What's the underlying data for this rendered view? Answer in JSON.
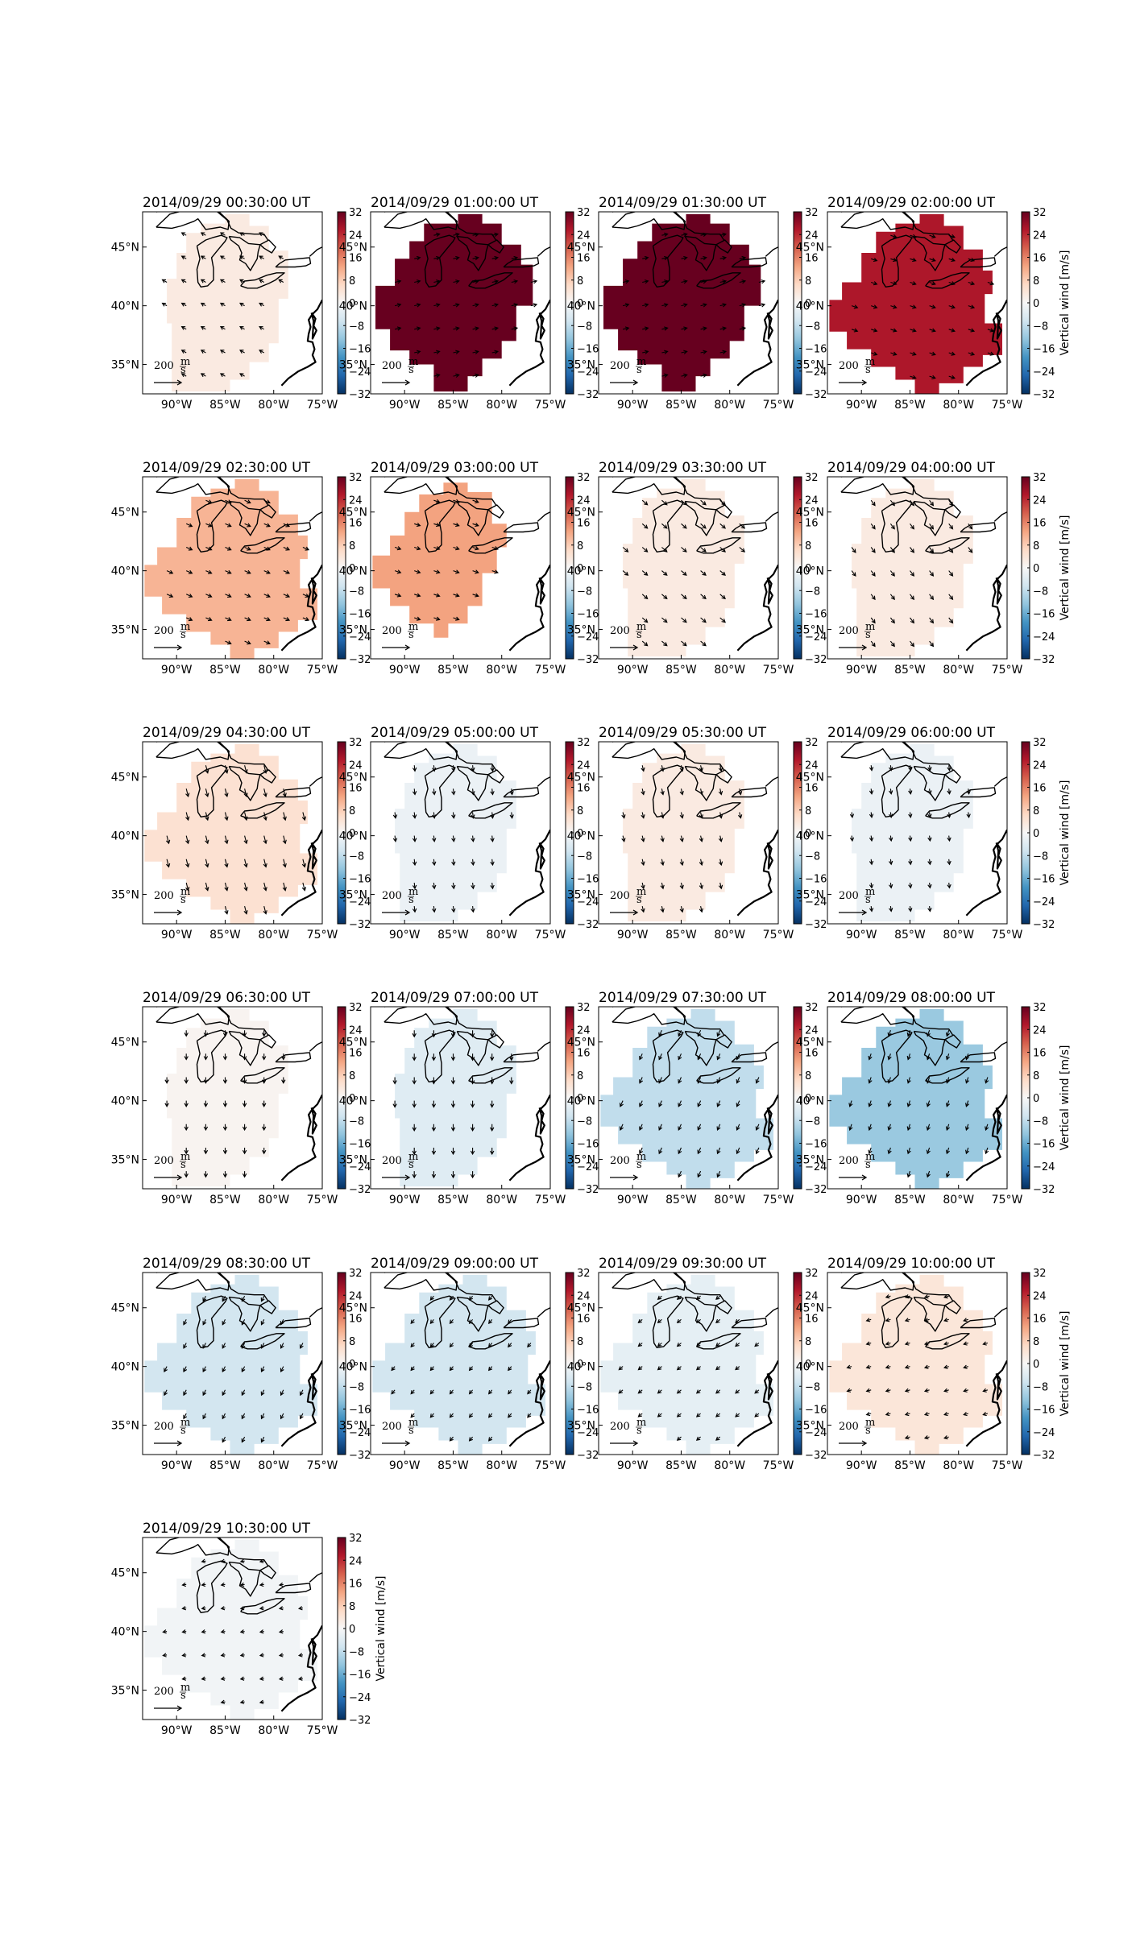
{
  "chart_data": {
    "type": "heatmap",
    "description_free": true,
    "colorbar_label": "Vertical wind [m/s]",
    "colorbar_ticks": [
      -32,
      -24,
      -16,
      -8,
      0,
      8,
      16,
      24,
      32
    ],
    "colorbar_range": [
      -32,
      32
    ],
    "colormap": [
      "#053061",
      "#2166ac",
      "#4393c3",
      "#92c5de",
      "#d1e5f0",
      "#f7f7f7",
      "#fddbc7",
      "#f4a582",
      "#d6604d",
      "#b2182b",
      "#67001f"
    ],
    "x_ticks": [
      "90°W",
      "85°W",
      "80°W",
      "75°W"
    ],
    "y_ticks": [
      "45°N",
      "40°N",
      "35°N"
    ],
    "lon_range": [
      -93.5,
      -75
    ],
    "lat_range": [
      32.5,
      48
    ],
    "scale_arrow_label": "200",
    "scale_arrow_unit_num": "m",
    "scale_arrow_unit_den": "s",
    "panels": [
      {
        "title": "2014/09/29 00:30:00 UT",
        "value": 3,
        "region": "A",
        "arrow": [
          -0.35,
          0.2
        ]
      },
      {
        "title": "2014/09/29 01:00:00 UT",
        "value": 40,
        "region": "B",
        "arrow": [
          0.45,
          0.1
        ]
      },
      {
        "title": "2014/09/29 01:30:00 UT",
        "value": 40,
        "region": "B",
        "arrow": [
          0.45,
          0.1
        ]
      },
      {
        "title": "2014/09/29 02:00:00 UT",
        "value": 26,
        "region": "C",
        "arrow": [
          0.45,
          -0.15
        ]
      },
      {
        "title": "2014/09/29 02:30:00 UT",
        "value": 11,
        "region": "C",
        "arrow": [
          0.45,
          -0.2
        ]
      },
      {
        "title": "2014/09/29 03:00:00 UT",
        "value": 13,
        "region": "D",
        "arrow": [
          0.45,
          -0.15
        ]
      },
      {
        "title": "2014/09/29 03:30:00 UT",
        "value": 3,
        "region": "A",
        "arrow": [
          0.4,
          -0.35
        ]
      },
      {
        "title": "2014/09/29 04:00:00 UT",
        "value": 3,
        "region": "A",
        "arrow": [
          0.3,
          -0.4
        ]
      },
      {
        "title": "2014/09/29 04:30:00 UT",
        "value": 5,
        "region": "C",
        "arrow": [
          0.15,
          -0.6
        ]
      },
      {
        "title": "2014/09/29 05:00:00 UT",
        "value": -2,
        "region": "A",
        "arrow": [
          0.05,
          -0.45
        ]
      },
      {
        "title": "2014/09/29 05:30:00 UT",
        "value": 3,
        "region": "A",
        "arrow": [
          0.1,
          -0.45
        ]
      },
      {
        "title": "2014/09/29 06:00:00 UT",
        "value": -2,
        "region": "A",
        "arrow": [
          0.05,
          -0.4
        ]
      },
      {
        "title": "2014/09/29 06:30:00 UT",
        "value": 1,
        "region": "A",
        "arrow": [
          0.0,
          -0.45
        ]
      },
      {
        "title": "2014/09/29 07:00:00 UT",
        "value": -4,
        "region": "A",
        "arrow": [
          0.0,
          -0.5
        ]
      },
      {
        "title": "2014/09/29 07:30:00 UT",
        "value": -8,
        "region": "C",
        "arrow": [
          -0.2,
          -0.45
        ]
      },
      {
        "title": "2014/09/29 08:00:00 UT",
        "value": -12,
        "region": "C",
        "arrow": [
          -0.15,
          -0.45
        ]
      },
      {
        "title": "2014/09/29 08:30:00 UT",
        "value": -6,
        "region": "C",
        "arrow": [
          -0.2,
          -0.4
        ]
      },
      {
        "title": "2014/09/29 09:00:00 UT",
        "value": -6,
        "region": "C",
        "arrow": [
          -0.25,
          -0.3
        ]
      },
      {
        "title": "2014/09/29 09:30:00 UT",
        "value": -3,
        "region": "C",
        "arrow": [
          -0.3,
          -0.25
        ]
      },
      {
        "title": "2014/09/29 10:00:00 UT",
        "value": 4,
        "region": "C",
        "arrow": [
          -0.35,
          -0.1
        ]
      },
      {
        "title": "2014/09/29 10:30:00 UT",
        "value": -1,
        "region": "C",
        "arrow": [
          -0.3,
          -0.05
        ]
      }
    ]
  }
}
